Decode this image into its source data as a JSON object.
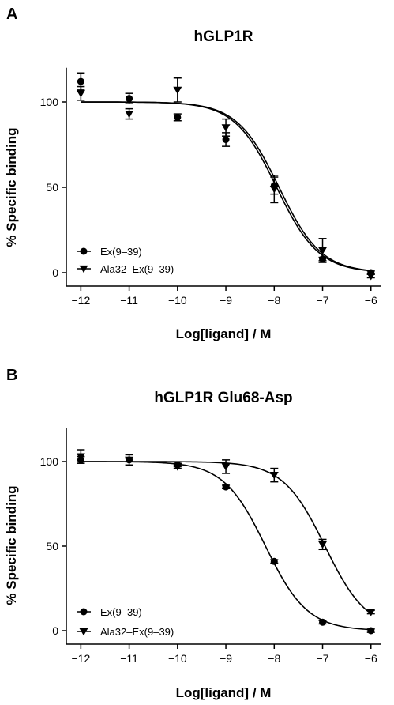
{
  "chart_data": [
    {
      "panel": "A",
      "type": "scatter",
      "title": "hGLP1R",
      "xlabel": "Log[ligand] / M",
      "ylabel": "% Specific binding",
      "xlim": [
        -12.3,
        -5.8
      ],
      "ylim": [
        -8,
        120
      ],
      "xticks": [
        -12,
        -11,
        -10,
        -9,
        -8,
        -7,
        -6
      ],
      "xtick_labels": [
        "−12",
        "−11",
        "−10",
        "−9",
        "−8",
        "−7",
        "−6"
      ],
      "yticks": [
        0,
        50,
        100
      ],
      "ytick_labels": [
        "0",
        "50",
        "100"
      ],
      "legend_position": "bottom-left",
      "series": [
        {
          "name": "Ex(9–39)",
          "marker": "circle",
          "x": [
            -12,
            -11,
            -10,
            -9,
            -8,
            -7,
            -6
          ],
          "y": [
            112,
            102,
            91,
            78,
            51,
            8,
            0
          ],
          "err": [
            5,
            3,
            2,
            4,
            5,
            1,
            1
          ],
          "fit": {
            "top": 100,
            "bottom": 0,
            "logIC50": -7.95
          }
        },
        {
          "name": "Ala32–Ex(9–39)",
          "marker": "triangle-down",
          "x": [
            -12,
            -11,
            -10,
            -9,
            -8,
            -7,
            -6
          ],
          "y": [
            105,
            93,
            107,
            85,
            49,
            13,
            -2
          ],
          "err": [
            4,
            3,
            7,
            5,
            8,
            7,
            1
          ],
          "fit": {
            "top": 100,
            "bottom": 0,
            "logIC50": -7.9
          }
        }
      ]
    },
    {
      "panel": "B",
      "type": "scatter",
      "title": "hGLP1R Glu68-Asp",
      "xlabel": "Log[ligand] / M",
      "ylabel": "% Specific binding",
      "xlim": [
        -12.3,
        -5.8
      ],
      "ylim": [
        -8,
        120
      ],
      "xticks": [
        -12,
        -11,
        -10,
        -9,
        -8,
        -7,
        -6
      ],
      "xtick_labels": [
        "−12",
        "−11",
        "−10",
        "−9",
        "−8",
        "−7",
        "−6"
      ],
      "yticks": [
        0,
        50,
        100
      ],
      "ytick_labels": [
        "0",
        "50",
        "100"
      ],
      "legend_position": "bottom-left",
      "series": [
        {
          "name": "Ex(9–39)",
          "marker": "circle",
          "x": [
            -12,
            -11,
            -10,
            -9,
            -8,
            -7,
            -6
          ],
          "y": [
            101,
            101,
            98,
            85,
            41,
            5,
            0
          ],
          "err": [
            2,
            1,
            1,
            1,
            1,
            1,
            1
          ],
          "fit": {
            "top": 100,
            "bottom": 0,
            "logIC50": -8.18
          }
        },
        {
          "name": "Ala32–Ex(9–39)",
          "marker": "triangle-down",
          "x": [
            -12,
            -11,
            -10,
            -9,
            -8,
            -7,
            -6
          ],
          "y": [
            103,
            101,
            97,
            97,
            92,
            51,
            11
          ],
          "err": [
            4,
            3,
            1,
            4,
            4,
            3,
            1
          ],
          "fit": {
            "top": 100,
            "bottom": 0,
            "logIC50": -6.95
          }
        }
      ]
    }
  ]
}
